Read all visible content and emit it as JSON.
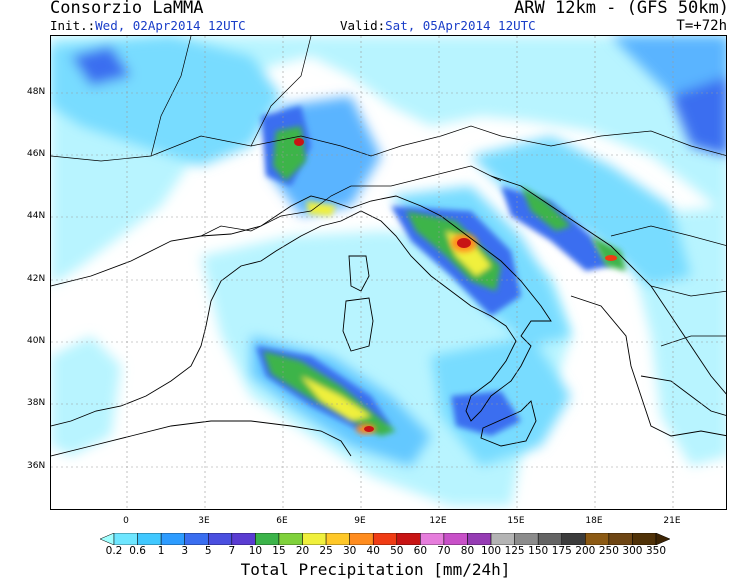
{
  "header": {
    "title_left": "Consorzio LaMMA",
    "title_right": "ARW 12km - (GFS 50km)",
    "init_label": "Init.:",
    "init_value": "Wed, 02Apr2014 12UTC",
    "valid_label": "Valid:",
    "valid_value": "Sat, 05Apr2014 12UTC",
    "forecast_step": "T=+72h"
  },
  "axes": {
    "lat_labels": [
      "48N",
      "46N",
      "44N",
      "42N",
      "40N",
      "38N",
      "36N"
    ],
    "lon_labels": [
      "0",
      "3E",
      "6E",
      "9E",
      "12E",
      "15E",
      "18E",
      "21E"
    ]
  },
  "colorbar": {
    "title": "Total Precipitation [mm/24h]",
    "levels": [
      "0.2",
      "0.6",
      "1",
      "3",
      "5",
      "7",
      "10",
      "15",
      "20",
      "25",
      "30",
      "40",
      "50",
      "60",
      "70",
      "80",
      "100",
      "125",
      "150",
      "175",
      "200",
      "250",
      "300",
      "350"
    ],
    "colors": [
      "#a0ffff",
      "#6ee6ff",
      "#40c8ff",
      "#2d9cff",
      "#3a6ef0",
      "#4a4fe0",
      "#5a3cd2",
      "#3cb44a",
      "#80d23c",
      "#f0f03c",
      "#ffc828",
      "#ff8c1e",
      "#f03c14",
      "#c81414",
      "#e67ddc",
      "#c850c8",
      "#963cb4",
      "#b4b4b4",
      "#8c8c8c",
      "#646464",
      "#3c3c3c",
      "#8c5a14",
      "#6e4614",
      "#503208",
      "#3c2404"
    ]
  }
}
